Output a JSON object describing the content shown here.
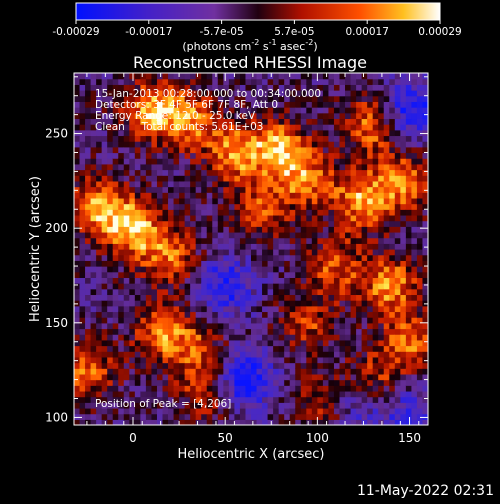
{
  "chart_data": {
    "type": "heatmap",
    "title": "Reconstructed RHESSI Image",
    "xlabel": "Heliocentric X (arcsec)",
    "ylabel": "Heliocentric Y (arcsec)",
    "xlim": [
      -32,
      160
    ],
    "ylim": [
      96,
      282
    ],
    "x_ticks": [
      0,
      50,
      100,
      150
    ],
    "y_ticks": [
      100,
      150,
      200,
      250
    ],
    "colorbar": {
      "range": [
        -0.00029,
        0.00029
      ],
      "tick_labels": [
        "-0.00029",
        "-0.00017",
        "-5.7e-05",
        "5.7e-05",
        "0.00017",
        "0.00029"
      ],
      "unit_parts": [
        "(photons cm",
        "-2",
        " s",
        "-1",
        " asec",
        "-2",
        ")"
      ]
    },
    "annotations": [
      "15-Jan-2013 00:28:00.000 to 00:34:00.000",
      "Detectors: 3F 4F 5F 6F 7F 8F, Att 0",
      "Energy Range: 12.0 - 25.0 keV",
      "Clean     Total counts: 5.61E+03"
    ],
    "peak_label": "Position of Peak = [4,206]",
    "timestamp": "11-May-2022 02:31",
    "hotspots": [
      {
        "x": 10,
        "y": 262,
        "v": 0.9
      },
      {
        "x": 32,
        "y": 258,
        "v": 0.75
      },
      {
        "x": -20,
        "y": 212,
        "v": 0.85
      },
      {
        "x": 0,
        "y": 200,
        "v": 1.0
      },
      {
        "x": 20,
        "y": 185,
        "v": 0.7
      },
      {
        "x": 55,
        "y": 240,
        "v": 0.85
      },
      {
        "x": 80,
        "y": 242,
        "v": 0.95
      },
      {
        "x": 95,
        "y": 225,
        "v": 0.7
      },
      {
        "x": 70,
        "y": 210,
        "v": 0.6
      },
      {
        "x": 130,
        "y": 255,
        "v": 0.8
      },
      {
        "x": 125,
        "y": 215,
        "v": 0.9
      },
      {
        "x": 148,
        "y": 225,
        "v": 0.75
      },
      {
        "x": 15,
        "y": 145,
        "v": 0.75
      },
      {
        "x": -25,
        "y": 125,
        "v": 0.7
      },
      {
        "x": 35,
        "y": 135,
        "v": 0.6
      },
      {
        "x": 110,
        "y": 180,
        "v": 0.65
      },
      {
        "x": 140,
        "y": 170,
        "v": 0.85
      },
      {
        "x": 150,
        "y": 140,
        "v": 0.7
      },
      {
        "x": 130,
        "y": 120,
        "v": 0.6
      },
      {
        "x": 95,
        "y": 150,
        "v": 0.55
      },
      {
        "x": 40,
        "y": 112,
        "v": 0.5
      },
      {
        "x": 105,
        "y": 108,
        "v": 0.55
      }
    ],
    "coldspots": [
      {
        "x": 60,
        "y": 120,
        "v": -0.9
      },
      {
        "x": 50,
        "y": 170,
        "v": -0.7
      },
      {
        "x": 150,
        "y": 262,
        "v": -0.85
      },
      {
        "x": 120,
        "y": 108,
        "v": -0.6
      },
      {
        "x": 150,
        "y": 102,
        "v": -0.55
      }
    ]
  }
}
